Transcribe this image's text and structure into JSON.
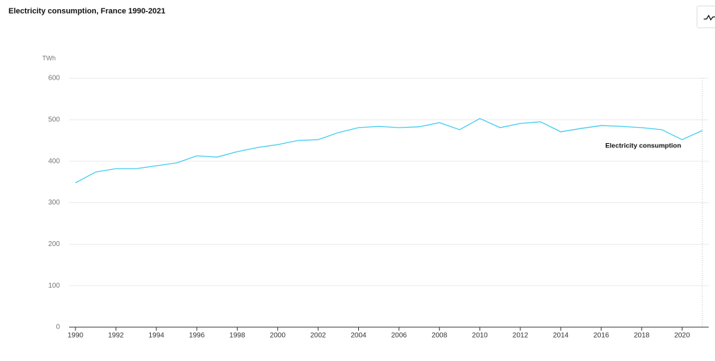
{
  "chart_data": {
    "type": "line",
    "title": "Electricity consumption, France 1990-2021",
    "y_label": "TWh",
    "x": [
      1990,
      1991,
      1992,
      1993,
      1994,
      1995,
      1996,
      1997,
      1998,
      1999,
      2000,
      2001,
      2002,
      2003,
      2004,
      2005,
      2006,
      2007,
      2008,
      2009,
      2010,
      2011,
      2012,
      2013,
      2014,
      2015,
      2016,
      2017,
      2018,
      2019,
      2020,
      2021
    ],
    "series": [
      {
        "name": "Electricity consumption",
        "color": "#44cdf0",
        "values": [
          348,
          374,
          382,
          382,
          389,
          396,
          413,
          410,
          423,
          433,
          440,
          450,
          452,
          469,
          481,
          484,
          481,
          483,
          493,
          476,
          503,
          481,
          491,
          495,
          471,
          479,
          486,
          484,
          481,
          476,
          452,
          474
        ]
      }
    ],
    "xlim": [
      1990,
      2021
    ],
    "xticks": [
      1990,
      1992,
      1994,
      1996,
      1998,
      2000,
      2002,
      2004,
      2006,
      2008,
      2010,
      2012,
      2014,
      2016,
      2018,
      2020
    ],
    "ylim": [
      0,
      600
    ],
    "yticks": [
      0,
      100,
      200,
      300,
      400,
      500,
      600
    ],
    "grid": true
  }
}
